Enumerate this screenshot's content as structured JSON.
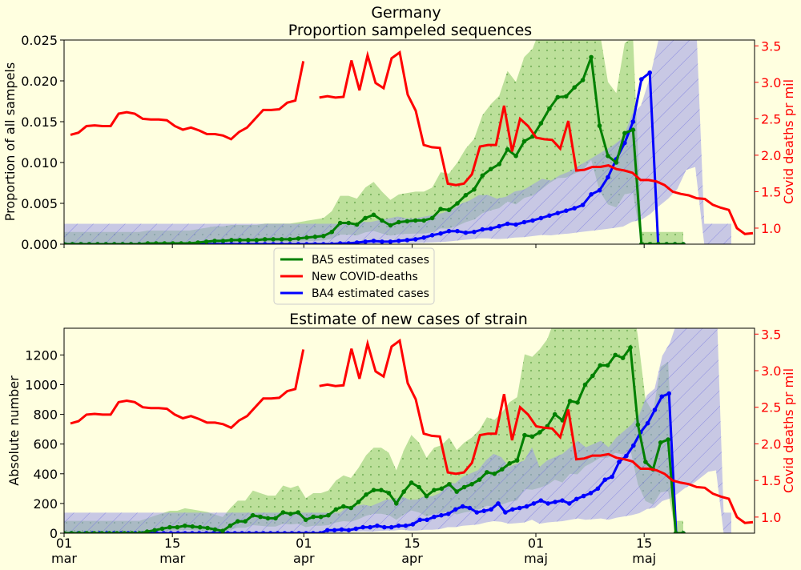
{
  "figure": {
    "title_line1": "Germany",
    "title_line2": "Proportion sampeled sequences",
    "title_bottom": "Estimate of new cases of strain"
  },
  "legend": [
    {
      "label": "BA5 estimated cases",
      "color": "#008000"
    },
    {
      "label": "New COVID-deaths",
      "color": "#ff0000"
    },
    {
      "label": "BA4 estimated cases",
      "color": "#0000ff"
    }
  ],
  "colors": {
    "ba5": "#008000",
    "ba4": "#0000ff",
    "deaths": "#ff0000",
    "ba5_band": "#8fcc6a",
    "ba4_band": "#9a9ae8",
    "overlap_band": "#5f8c99",
    "background": "#ffffe0"
  },
  "chart_data": [
    {
      "type": "line",
      "title": "Germany\nProportion sampeled sequences",
      "ylabel": "Proportion of all sampels",
      "y2label": "Covid deaths pr mil",
      "ylim": [
        0,
        0.025
      ],
      "yticks": [
        "0.000",
        "0.005",
        "0.010",
        "0.015",
        "0.020",
        "0.025"
      ],
      "y2lim": [
        0.78,
        3.58
      ],
      "y2ticks": [
        "1.0",
        "1.5",
        "2.0",
        "2.5",
        "3.0",
        "3.5"
      ],
      "grid": false,
      "x": "days since 01 mar (0..63)",
      "series": [
        {
          "name": "BA5 estimated cases",
          "values": [
            0,
            0,
            0,
            0,
            0,
            0,
            0,
            0,
            0,
            0,
            0.0001,
            0.0001,
            0.0001,
            0.0001,
            0.0001,
            0.0001,
            0.0002,
            0.0003,
            0.0004,
            0.0004,
            0.0005,
            0.0005,
            0.0005,
            0.0005,
            0.0006,
            0.0006,
            0.0006,
            0.0006,
            0.0007,
            0.0008,
            0.0009,
            0.001,
            0.0015,
            0.0026,
            0.0026,
            0.0024,
            0.0032,
            0.0036,
            0.0029,
            0.0023,
            0.0027,
            0.0028,
            0.0029,
            0.0029,
            0.0032,
            0.0043,
            0.0042,
            0.005,
            0.006,
            0.0067,
            0.0084,
            0.0092,
            0.0098,
            0.0116,
            0.0108,
            0.0126,
            0.0132,
            0.0148,
            0.0166,
            0.018,
            0.0181,
            0.0192,
            0.0201,
            0.0229,
            0.0145,
            0.0108,
            0.01,
            0.0136,
            0.014,
            0,
            0,
            0,
            0,
            0,
            0
          ]
        },
        {
          "name": "BA4 estimated cases",
          "values": [
            0,
            0,
            0,
            0,
            0,
            0,
            0,
            0,
            0,
            0,
            0,
            0,
            0,
            0,
            0,
            0,
            0,
            0,
            0,
            0,
            0,
            0,
            0,
            0,
            0,
            0,
            0,
            0,
            0,
            0,
            0,
            0,
            0,
            0.0001,
            0.0001,
            0.0002,
            0.0003,
            0.0004,
            0.0003,
            0.0003,
            0.0004,
            0.0005,
            0.0006,
            0.0008,
            0.0011,
            0.0013,
            0.0016,
            0.0016,
            0.0014,
            0.0015,
            0.0018,
            0.0019,
            0.0022,
            0.0025,
            0.0024,
            0.0027,
            0.0029,
            0.0032,
            0.0035,
            0.0038,
            0.0041,
            0.0044,
            0.0048,
            0.0061,
            0.0066,
            0.0082,
            0.0104,
            0.0124,
            0.015,
            0.0202,
            0.021,
            0,
            0,
            0,
            0
          ]
        },
        {
          "name": "New COVID-deaths",
          "axis": "right",
          "values": [
            2.28,
            2.31,
            2.4,
            2.41,
            2.4,
            2.4,
            2.57,
            2.59,
            2.57,
            2.5,
            2.49,
            2.49,
            2.48,
            2.4,
            2.35,
            2.38,
            2.34,
            2.29,
            2.29,
            2.27,
            2.22,
            2.32,
            2.38,
            2.5,
            2.62,
            2.62,
            2.63,
            2.72,
            2.75,
            3.29,
            null,
            2.79,
            2.81,
            2.79,
            2.8,
            3.3,
            2.89,
            3.37,
            2.99,
            2.92,
            3.33,
            3.41,
            2.83,
            2.61,
            2.14,
            2.11,
            2.1,
            1.61,
            1.59,
            1.61,
            1.74,
            2.12,
            2.14,
            2.14,
            2.68,
            2.05,
            2.5,
            2.4,
            2.24,
            2.22,
            2.21,
            2.09,
            2.47,
            1.79,
            1.8,
            1.84,
            1.84,
            1.86,
            1.81,
            1.79,
            1.76,
            1.66,
            1.66,
            1.64,
            1.59,
            1.5,
            1.47,
            1.45,
            1.41,
            1.4,
            1.32,
            1.28,
            1.25,
            1.0,
            0.92,
            0.93
          ]
        }
      ]
    },
    {
      "type": "line",
      "title": "Estimate of new cases of strain",
      "ylabel": "Absolute number",
      "y2label": "Covid deaths pr mil",
      "ylim": [
        0,
        1380
      ],
      "yticks": [
        "0",
        "200",
        "400",
        "600",
        "800",
        "1000",
        "1200"
      ],
      "y2lim": [
        0.78,
        3.58
      ],
      "y2ticks": [
        "1.0",
        "1.5",
        "2.0",
        "2.5",
        "3.0",
        "3.5"
      ],
      "xticks": [
        {
          "day": "01",
          "month": "mar"
        },
        {
          "day": "15",
          "month": "mar"
        },
        {
          "day": "01",
          "month": "apr"
        },
        {
          "day": "15",
          "month": "apr"
        },
        {
          "day": "01",
          "month": "maj"
        },
        {
          "day": "15",
          "month": "maj"
        }
      ],
      "grid": false,
      "series": [
        {
          "name": "BA5 estimated cases",
          "values": [
            0,
            0,
            0,
            0,
            0,
            0,
            0,
            0,
            0,
            0,
            0,
            10,
            20,
            30,
            40,
            40,
            50,
            45,
            40,
            35,
            25,
            15,
            50,
            80,
            80,
            120,
            110,
            100,
            100,
            140,
            130,
            140,
            90,
            110,
            110,
            120,
            160,
            180,
            170,
            210,
            260,
            290,
            290,
            270,
            200,
            280,
            340,
            310,
            250,
            290,
            300,
            330,
            280,
            310,
            330,
            360,
            410,
            400,
            430,
            470,
            490,
            660,
            650,
            680,
            720,
            800,
            760,
            890,
            880,
            1000,
            1060,
            1130,
            1130,
            1200,
            1180,
            1250,
            730,
            480,
            430,
            610,
            630,
            0,
            0
          ]
        },
        {
          "name": "BA4 estimated cases",
          "values": [
            0,
            0,
            0,
            0,
            0,
            0,
            0,
            0,
            0,
            0,
            0,
            0,
            0,
            0,
            0,
            0,
            0,
            0,
            0,
            0,
            0,
            0,
            0,
            0,
            0,
            0,
            0,
            0,
            0,
            0,
            0,
            0,
            0,
            0,
            0,
            0,
            0,
            20,
            20,
            25,
            20,
            30,
            40,
            40,
            50,
            40,
            40,
            50,
            50,
            60,
            90,
            90,
            110,
            120,
            130,
            160,
            180,
            170,
            140,
            150,
            160,
            200,
            140,
            160,
            170,
            180,
            200,
            220,
            200,
            210,
            220,
            200,
            230,
            250,
            270,
            300,
            360,
            380,
            480,
            520,
            590,
            680,
            740,
            830,
            920,
            940,
            0,
            0
          ]
        },
        {
          "name": "New COVID-deaths",
          "axis": "right",
          "values": [
            2.28,
            2.31,
            2.4,
            2.41,
            2.4,
            2.4,
            2.57,
            2.59,
            2.57,
            2.5,
            2.49,
            2.49,
            2.48,
            2.4,
            2.35,
            2.38,
            2.34,
            2.29,
            2.29,
            2.27,
            2.22,
            2.32,
            2.38,
            2.5,
            2.62,
            2.62,
            2.63,
            2.72,
            2.75,
            3.29,
            null,
            2.79,
            2.81,
            2.79,
            2.8,
            3.3,
            2.89,
            3.37,
            2.99,
            2.92,
            3.33,
            3.41,
            2.83,
            2.61,
            2.14,
            2.11,
            2.1,
            1.61,
            1.59,
            1.61,
            1.74,
            2.12,
            2.14,
            2.14,
            2.68,
            2.05,
            2.5,
            2.4,
            2.24,
            2.22,
            2.21,
            2.09,
            2.47,
            1.79,
            1.8,
            1.84,
            1.84,
            1.86,
            1.81,
            1.79,
            1.76,
            1.66,
            1.66,
            1.64,
            1.59,
            1.5,
            1.47,
            1.45,
            1.41,
            1.4,
            1.32,
            1.28,
            1.25,
            1.0,
            0.92,
            0.93
          ]
        }
      ]
    }
  ]
}
